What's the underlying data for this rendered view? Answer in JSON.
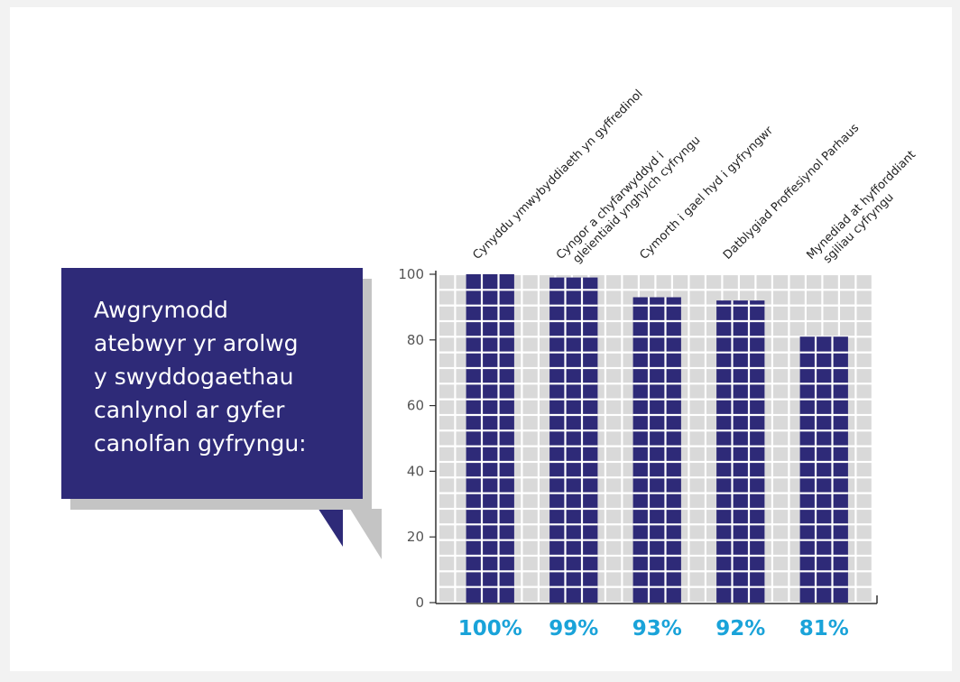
{
  "callout": {
    "text": "Awgrymodd\natebwyr yr arolwg\ny swyddogaethau\ncanlynol ar gyfer\ncanolfan gyfryngu:"
  },
  "colors": {
    "bar": "#2e2a78",
    "grid_cell": "#d9d9d9",
    "percent": "#1aa3d9",
    "callout_bg": "#2e2a78",
    "shadow": "#c4c4c4"
  },
  "chart_data": {
    "type": "bar",
    "categories": [
      [
        "Cynyddu ymwybyddiaeth yn gyffredinol"
      ],
      [
        "Cyngor a chyfarwyddyd i",
        "gleientiaid ynghylch cyfryngu"
      ],
      [
        "Cymorth i gael hyd i gyfryngwr"
      ],
      [
        "Datblygiad Proffesiynol Parhaus"
      ],
      [
        "Mynediad at hyfforddiant",
        "sgiliau cyfryngu"
      ]
    ],
    "values": [
      100,
      99,
      93,
      92,
      81
    ],
    "value_labels": [
      "100%",
      "99%",
      "93%",
      "92%",
      "81%"
    ],
    "ylim": [
      0,
      100
    ],
    "yticks": [
      "0",
      "20",
      "40",
      "60",
      "80",
      "100"
    ],
    "grid": true
  }
}
